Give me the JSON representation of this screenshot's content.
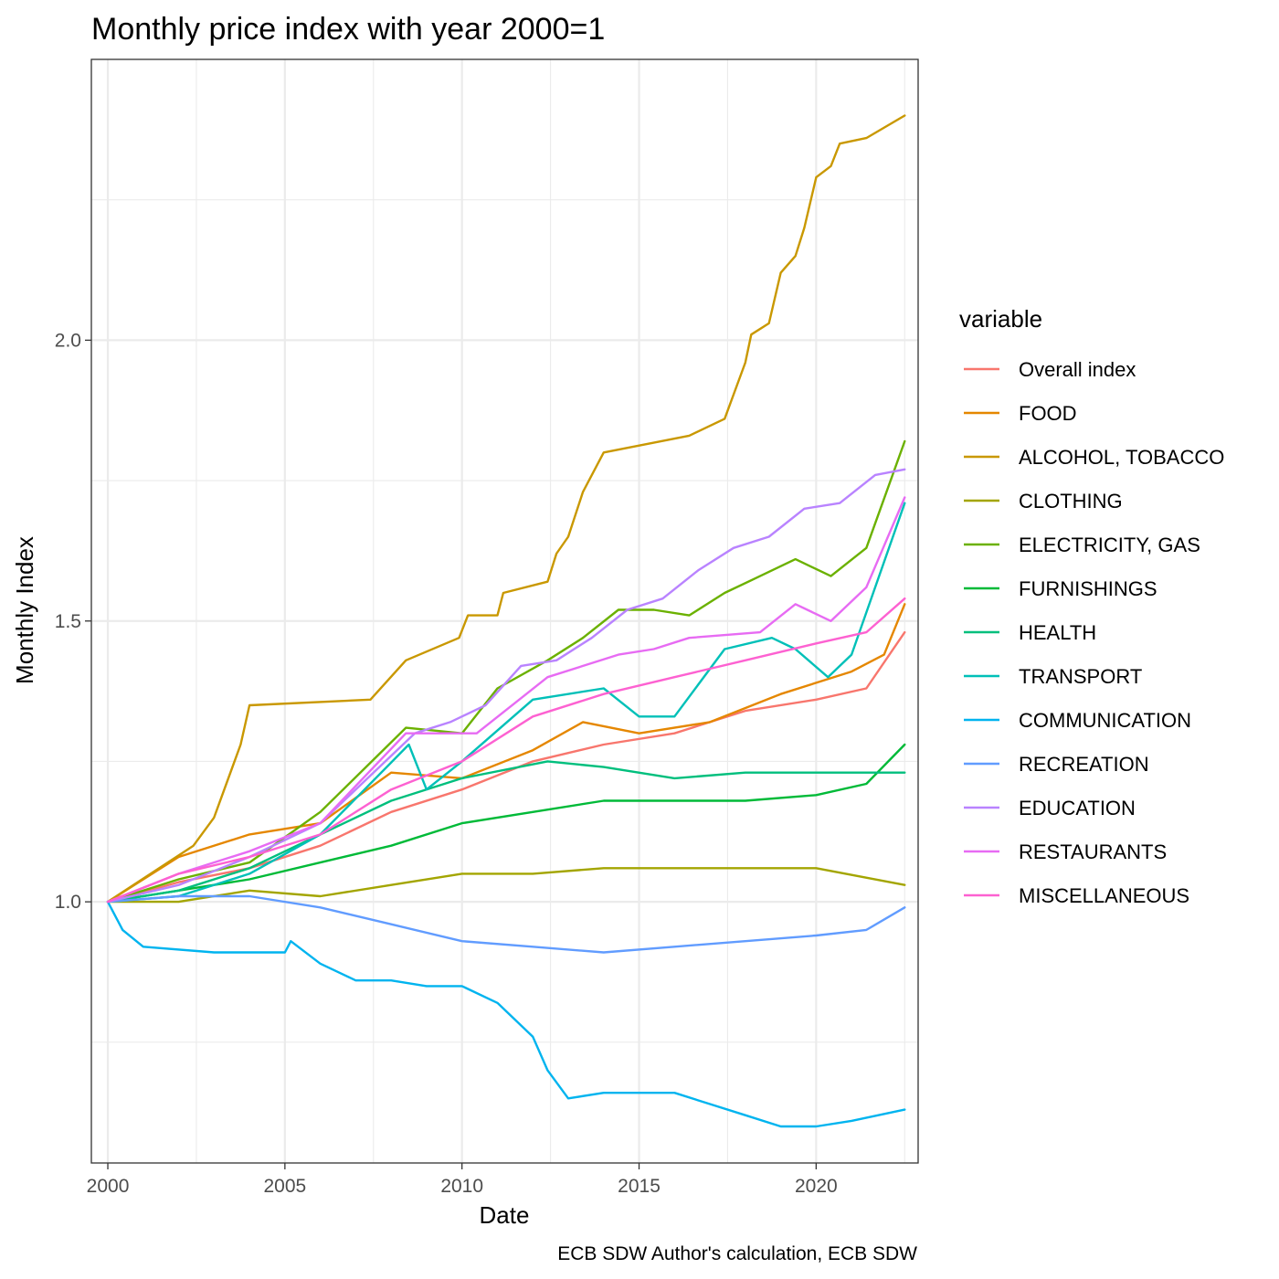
{
  "chart_data": {
    "type": "line",
    "title": "Monthly price index with year 2000=1",
    "xlabel": "Date",
    "ylabel": "Monthly Index",
    "caption": "ECB SDW Author's calculation, ECB SDW",
    "legend_title": "variable",
    "legend_position": "right",
    "grid": true,
    "xlim": [
      "1999-07",
      "2023-01"
    ],
    "ylim": [
      0.535,
      2.5
    ],
    "x_ticks": [
      "2000",
      "2005",
      "2010",
      "2015",
      "2020"
    ],
    "y_ticks": [
      "1.0",
      "1.5",
      "2.0"
    ],
    "series": [
      {
        "name": "Overall index",
        "color": "#F8766D",
        "values": [
          [
            "2000-01",
            1.0
          ],
          [
            "2002-01",
            1.035
          ],
          [
            "2004-01",
            1.06
          ],
          [
            "2006-01",
            1.1
          ],
          [
            "2008-01",
            1.16
          ],
          [
            "2010-01",
            1.2
          ],
          [
            "2012-01",
            1.25
          ],
          [
            "2014-01",
            1.28
          ],
          [
            "2016-01",
            1.3
          ],
          [
            "2018-01",
            1.34
          ],
          [
            "2020-01",
            1.36
          ],
          [
            "2021-06",
            1.38
          ],
          [
            "2022-07",
            1.48
          ]
        ]
      },
      {
        "name": "FOOD",
        "color": "#E58700",
        "values": [
          [
            "2000-01",
            1.0
          ],
          [
            "2002-01",
            1.08
          ],
          [
            "2004-01",
            1.12
          ],
          [
            "2006-01",
            1.14
          ],
          [
            "2008-01",
            1.23
          ],
          [
            "2010-01",
            1.22
          ],
          [
            "2012-01",
            1.27
          ],
          [
            "2013-06",
            1.32
          ],
          [
            "2015-01",
            1.3
          ],
          [
            "2017-01",
            1.32
          ],
          [
            "2019-01",
            1.37
          ],
          [
            "2021-01",
            1.41
          ],
          [
            "2021-12",
            1.44
          ],
          [
            "2022-07",
            1.53
          ]
        ]
      },
      {
        "name": "ALCOHOL, TOBACCO",
        "color": "#C99800",
        "values": [
          [
            "2000-01",
            1.0
          ],
          [
            "2002-06",
            1.1
          ],
          [
            "2003-01",
            1.15
          ],
          [
            "2003-10",
            1.28
          ],
          [
            "2004-01",
            1.35
          ],
          [
            "2007-06",
            1.36
          ],
          [
            "2008-06",
            1.43
          ],
          [
            "2009-12",
            1.47
          ],
          [
            "2010-03",
            1.51
          ],
          [
            "2011-01",
            1.51
          ],
          [
            "2011-03",
            1.55
          ],
          [
            "2012-06",
            1.57
          ],
          [
            "2012-09",
            1.62
          ],
          [
            "2013-01",
            1.65
          ],
          [
            "2013-06",
            1.73
          ],
          [
            "2014-01",
            1.8
          ],
          [
            "2016-06",
            1.83
          ],
          [
            "2017-06",
            1.86
          ],
          [
            "2018-01",
            1.96
          ],
          [
            "2018-03",
            2.01
          ],
          [
            "2018-09",
            2.03
          ],
          [
            "2019-01",
            2.12
          ],
          [
            "2019-06",
            2.15
          ],
          [
            "2019-09",
            2.2
          ],
          [
            "2020-01",
            2.29
          ],
          [
            "2020-06",
            2.31
          ],
          [
            "2020-09",
            2.35
          ],
          [
            "2021-06",
            2.36
          ],
          [
            "2022-07",
            2.4
          ]
        ]
      },
      {
        "name": "CLOTHING",
        "color": "#A3A500",
        "values": [
          [
            "2000-01",
            1.0
          ],
          [
            "2002-01",
            1.0
          ],
          [
            "2004-01",
            1.02
          ],
          [
            "2006-01",
            1.01
          ],
          [
            "2008-01",
            1.03
          ],
          [
            "2010-01",
            1.05
          ],
          [
            "2012-01",
            1.05
          ],
          [
            "2014-01",
            1.06
          ],
          [
            "2016-01",
            1.06
          ],
          [
            "2018-01",
            1.06
          ],
          [
            "2020-01",
            1.06
          ],
          [
            "2022-07",
            1.03
          ]
        ]
      },
      {
        "name": "ELECTRICITY, GAS",
        "color": "#6BB100",
        "values": [
          [
            "2000-01",
            1.0
          ],
          [
            "2002-01",
            1.04
          ],
          [
            "2004-01",
            1.07
          ],
          [
            "2006-01",
            1.16
          ],
          [
            "2008-06",
            1.31
          ],
          [
            "2010-01",
            1.3
          ],
          [
            "2011-01",
            1.38
          ],
          [
            "2012-06",
            1.43
          ],
          [
            "2013-06",
            1.47
          ],
          [
            "2014-06",
            1.52
          ],
          [
            "2015-06",
            1.52
          ],
          [
            "2016-06",
            1.51
          ],
          [
            "2017-06",
            1.55
          ],
          [
            "2018-06",
            1.58
          ],
          [
            "2019-06",
            1.61
          ],
          [
            "2020-06",
            1.58
          ],
          [
            "2021-06",
            1.63
          ],
          [
            "2022-07",
            1.82
          ]
        ]
      },
      {
        "name": "FURNISHINGS",
        "color": "#00BA38",
        "values": [
          [
            "2000-01",
            1.0
          ],
          [
            "2002-01",
            1.02
          ],
          [
            "2004-01",
            1.04
          ],
          [
            "2006-01",
            1.07
          ],
          [
            "2008-01",
            1.1
          ],
          [
            "2010-01",
            1.14
          ],
          [
            "2012-01",
            1.16
          ],
          [
            "2014-01",
            1.18
          ],
          [
            "2016-01",
            1.18
          ],
          [
            "2018-01",
            1.18
          ],
          [
            "2020-01",
            1.19
          ],
          [
            "2021-06",
            1.21
          ],
          [
            "2022-07",
            1.28
          ]
        ]
      },
      {
        "name": "HEALTH",
        "color": "#00BF7D",
        "values": [
          [
            "2000-01",
            1.0
          ],
          [
            "2002-01",
            1.02
          ],
          [
            "2004-01",
            1.06
          ],
          [
            "2006-01",
            1.12
          ],
          [
            "2008-01",
            1.18
          ],
          [
            "2010-01",
            1.22
          ],
          [
            "2012-06",
            1.25
          ],
          [
            "2014-01",
            1.24
          ],
          [
            "2016-01",
            1.22
          ],
          [
            "2018-01",
            1.23
          ],
          [
            "2020-01",
            1.23
          ],
          [
            "2022-07",
            1.23
          ]
        ]
      },
      {
        "name": "TRANSPORT",
        "color": "#00C0B8",
        "values": [
          [
            "2000-01",
            1.0
          ],
          [
            "2002-01",
            1.01
          ],
          [
            "2004-01",
            1.05
          ],
          [
            "2006-01",
            1.12
          ],
          [
            "2008-07",
            1.28
          ],
          [
            "2009-01",
            1.2
          ],
          [
            "2010-01",
            1.25
          ],
          [
            "2012-01",
            1.36
          ],
          [
            "2014-01",
            1.38
          ],
          [
            "2015-01",
            1.33
          ],
          [
            "2016-01",
            1.33
          ],
          [
            "2017-06",
            1.45
          ],
          [
            "2018-10",
            1.47
          ],
          [
            "2019-06",
            1.45
          ],
          [
            "2020-05",
            1.4
          ],
          [
            "2021-01",
            1.44
          ],
          [
            "2022-07",
            1.71
          ]
        ]
      },
      {
        "name": "COMMUNICATION",
        "color": "#00B4EF",
        "values": [
          [
            "2000-01",
            1.0
          ],
          [
            "2000-06",
            0.95
          ],
          [
            "2001-01",
            0.92
          ],
          [
            "2003-01",
            0.91
          ],
          [
            "2004-01",
            0.91
          ],
          [
            "2005-01",
            0.91
          ],
          [
            "2005-03",
            0.93
          ],
          [
            "2006-01",
            0.89
          ],
          [
            "2007-01",
            0.86
          ],
          [
            "2008-01",
            0.86
          ],
          [
            "2009-01",
            0.85
          ],
          [
            "2010-01",
            0.85
          ],
          [
            "2011-01",
            0.82
          ],
          [
            "2012-01",
            0.76
          ],
          [
            "2012-06",
            0.7
          ],
          [
            "2013-01",
            0.65
          ],
          [
            "2014-01",
            0.66
          ],
          [
            "2016-01",
            0.66
          ],
          [
            "2017-01",
            0.64
          ],
          [
            "2018-01",
            0.62
          ],
          [
            "2019-01",
            0.6
          ],
          [
            "2020-01",
            0.6
          ],
          [
            "2021-01",
            0.61
          ],
          [
            "2022-07",
            0.63
          ]
        ]
      },
      {
        "name": "RECREATION",
        "color": "#619CFF",
        "values": [
          [
            "2000-01",
            1.0
          ],
          [
            "2002-01",
            1.01
          ],
          [
            "2004-01",
            1.01
          ],
          [
            "2006-01",
            0.99
          ],
          [
            "2008-01",
            0.96
          ],
          [
            "2010-01",
            0.93
          ],
          [
            "2012-01",
            0.92
          ],
          [
            "2014-01",
            0.91
          ],
          [
            "2016-01",
            0.92
          ],
          [
            "2018-01",
            0.93
          ],
          [
            "2020-01",
            0.94
          ],
          [
            "2021-06",
            0.95
          ],
          [
            "2022-07",
            0.99
          ]
        ]
      },
      {
        "name": "EDUCATION",
        "color": "#B983FF",
        "values": [
          [
            "2000-01",
            1.0
          ],
          [
            "2002-01",
            1.03
          ],
          [
            "2004-01",
            1.08
          ],
          [
            "2006-01",
            1.14
          ],
          [
            "2008-09",
            1.3
          ],
          [
            "2009-09",
            1.32
          ],
          [
            "2010-09",
            1.35
          ],
          [
            "2011-09",
            1.42
          ],
          [
            "2012-09",
            1.43
          ],
          [
            "2013-09",
            1.47
          ],
          [
            "2014-09",
            1.52
          ],
          [
            "2015-09",
            1.54
          ],
          [
            "2016-09",
            1.59
          ],
          [
            "2017-09",
            1.63
          ],
          [
            "2018-09",
            1.65
          ],
          [
            "2019-09",
            1.7
          ],
          [
            "2020-09",
            1.71
          ],
          [
            "2021-09",
            1.76
          ],
          [
            "2022-07",
            1.77
          ]
        ]
      },
      {
        "name": "RESTAURANTS",
        "color": "#E76BF3",
        "values": [
          [
            "2000-01",
            1.0
          ],
          [
            "2002-01",
            1.05
          ],
          [
            "2004-01",
            1.09
          ],
          [
            "2006-01",
            1.14
          ],
          [
            "2008-06",
            1.3
          ],
          [
            "2010-06",
            1.3
          ],
          [
            "2012-06",
            1.4
          ],
          [
            "2014-06",
            1.44
          ],
          [
            "2015-06",
            1.45
          ],
          [
            "2016-06",
            1.47
          ],
          [
            "2018-06",
            1.48
          ],
          [
            "2019-06",
            1.53
          ],
          [
            "2020-06",
            1.5
          ],
          [
            "2021-06",
            1.56
          ],
          [
            "2022-07",
            1.72
          ]
        ]
      },
      {
        "name": "MISCELLANEOUS",
        "color": "#FD61D1",
        "values": [
          [
            "2000-01",
            1.0
          ],
          [
            "2002-01",
            1.05
          ],
          [
            "2004-01",
            1.08
          ],
          [
            "2006-01",
            1.12
          ],
          [
            "2008-01",
            1.2
          ],
          [
            "2010-01",
            1.25
          ],
          [
            "2012-01",
            1.33
          ],
          [
            "2014-01",
            1.37
          ],
          [
            "2016-01",
            1.4
          ],
          [
            "2018-01",
            1.43
          ],
          [
            "2020-01",
            1.46
          ],
          [
            "2021-06",
            1.48
          ],
          [
            "2022-07",
            1.54
          ]
        ]
      }
    ]
  }
}
